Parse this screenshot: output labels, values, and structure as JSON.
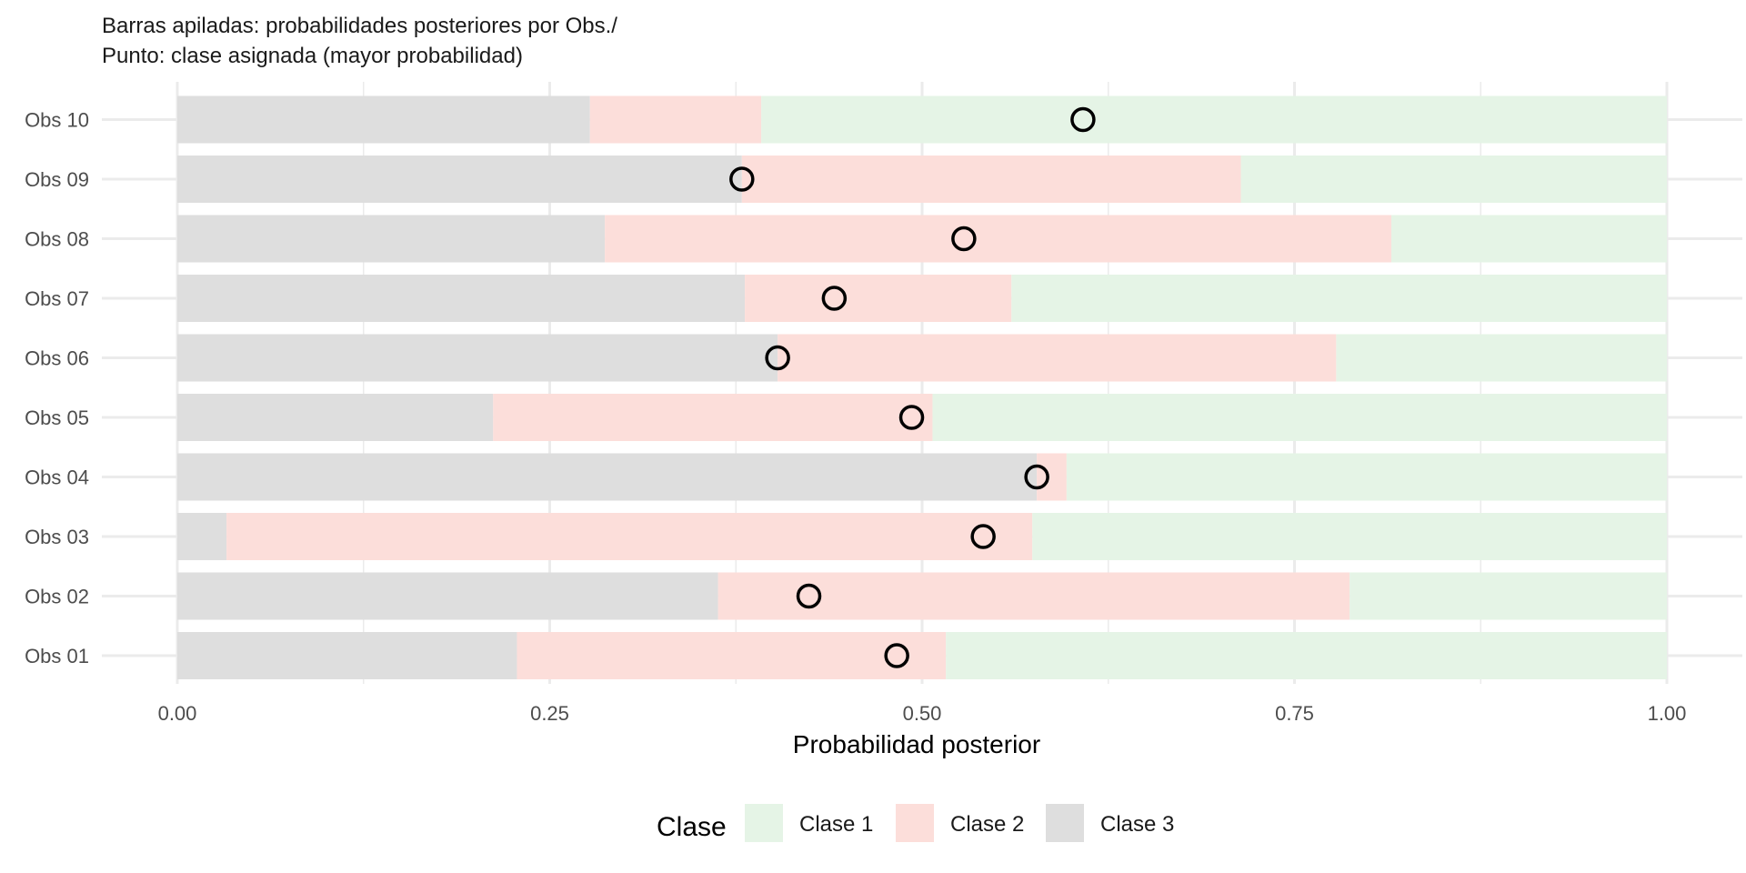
{
  "chart_data": {
    "type": "bar",
    "orientation": "horizontal",
    "stacked": true,
    "subtitle_lines": [
      "Barras apiladas: probabilidades posteriores por Obs./",
      "Punto: clase asignada (mayor probabilidad)"
    ],
    "xlabel": "Probabilidad posterior",
    "ylabel": "",
    "xlim": [
      0,
      1
    ],
    "x_ticks": [
      0,
      0.25,
      0.5,
      0.75,
      1
    ],
    "x_tick_labels": [
      "0.00",
      "0.25",
      "0.50",
      "0.75",
      "1.00"
    ],
    "grid": true,
    "legend_position": "bottom",
    "legend": {
      "title": "Clase",
      "entries": [
        "Clase 1",
        "Clase 2",
        "Clase 3"
      ]
    },
    "categories": [
      "Obs 01",
      "Obs 02",
      "Obs 03",
      "Obs 04",
      "Obs 05",
      "Obs 06",
      "Obs 07",
      "Obs 08",
      "Obs 09",
      "Obs 10"
    ],
    "stack_order": [
      "Clase 3",
      "Clase 2",
      "Clase 1"
    ],
    "series": [
      {
        "name": "Clase 3",
        "color": "#dedede",
        "values": [
          0.228,
          0.363,
          0.033,
          0.577,
          0.212,
          0.403,
          0.381,
          0.287,
          0.379,
          0.277
        ]
      },
      {
        "name": "Clase 2",
        "color": "#fcdeda",
        "values": [
          0.288,
          0.424,
          0.541,
          0.02,
          0.295,
          0.375,
          0.179,
          0.528,
          0.335,
          0.115
        ]
      },
      {
        "name": "Clase 1",
        "color": "#e5f4e6",
        "values": [
          0.484,
          0.213,
          0.426,
          0.403,
          0.493,
          0.222,
          0.44,
          0.185,
          0.286,
          0.608
        ]
      }
    ],
    "points": {
      "label": "clase asignada (mayor probabilidad)",
      "x": [
        0.483,
        0.424,
        0.541,
        0.577,
        0.493,
        0.403,
        0.441,
        0.528,
        0.379,
        0.608
      ]
    },
    "colors": {
      "grid": "#ebebeb",
      "point_stroke": "#000000"
    }
  }
}
